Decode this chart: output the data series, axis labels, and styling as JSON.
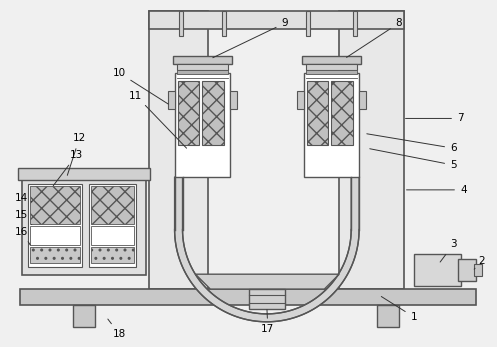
{
  "bg_color": "#f0f0f0",
  "line_color": "#555555",
  "white": "#ffffff",
  "light_gray": "#d8d8d8",
  "mid_gray": "#bbbbbb",
  "figsize": [
    4.97,
    3.47
  ],
  "dpi": 100
}
